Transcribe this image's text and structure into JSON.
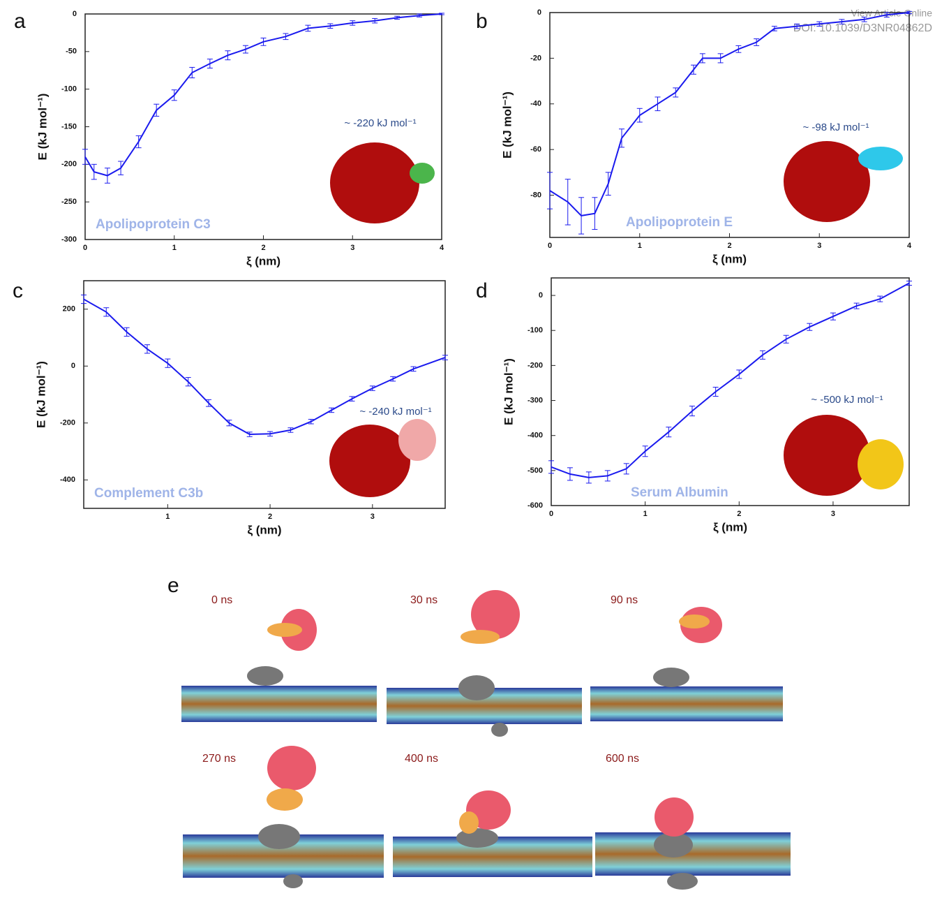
{
  "header": {
    "link": "View Article Online",
    "doi": "DOI: 10.1039/D3NR04862D"
  },
  "chart_data": [
    {
      "type": "line",
      "panel": "a",
      "annotation": "~ -220 kJ mol⁻¹",
      "protein": "Apolipoprotein C3",
      "xlabel": "ξ (nm)",
      "ylabel": "E (kJ mol⁻¹)",
      "color": "#1a1aee",
      "xlim": [
        0,
        4
      ],
      "xticks": [
        0,
        1,
        2,
        3,
        4
      ],
      "ylim": [
        -300,
        0
      ],
      "yticks": [
        -300,
        -250,
        -200,
        -150,
        -100,
        -50,
        0
      ],
      "x": [
        0,
        0.1,
        0.25,
        0.4,
        0.6,
        0.8,
        1.0,
        1.2,
        1.4,
        1.6,
        1.8,
        2.0,
        2.25,
        2.5,
        2.75,
        3.0,
        3.25,
        3.5,
        3.75,
        4.0
      ],
      "values": [
        -190,
        -210,
        -215,
        -205,
        -170,
        -128,
        -108,
        -78,
        -66,
        -55,
        -47,
        -37,
        -30,
        -19,
        -16,
        -12,
        -9,
        -5,
        -2,
        0
      ],
      "errors": [
        10,
        10,
        10,
        9,
        8,
        8,
        7,
        7,
        6,
        6,
        5,
        5,
        4,
        4,
        3,
        3,
        3,
        2,
        2,
        1
      ]
    },
    {
      "type": "line",
      "panel": "b",
      "annotation": "~ -98 kJ mol⁻¹",
      "protein": "Apolipoprotein E",
      "xlabel": "ξ (nm)",
      "ylabel": "E (kJ mol⁻¹)",
      "color": "#1a1aee",
      "xlim": [
        0,
        4
      ],
      "xticks": [
        0,
        1,
        2,
        3,
        4
      ],
      "ylim": [
        -98.5,
        0
      ],
      "yticks": [
        -80,
        -60,
        -40,
        -20,
        0
      ],
      "x": [
        0,
        0.2,
        0.35,
        0.5,
        0.65,
        0.8,
        1.0,
        1.2,
        1.4,
        1.6,
        1.7,
        1.9,
        2.1,
        2.3,
        2.5,
        2.75,
        3.0,
        3.25,
        3.5,
        3.75,
        4.0
      ],
      "values": [
        -78,
        -83,
        -89,
        -88,
        -75,
        -55,
        -45,
        -40,
        -35,
        -25,
        -20,
        -20,
        -16,
        -13,
        -7,
        -6,
        -5,
        -4,
        -3,
        -1,
        0
      ],
      "errors": [
        8,
        10,
        8,
        7,
        5,
        4,
        3,
        3,
        2,
        2,
        2,
        2,
        1.5,
        1.5,
        1,
        1,
        1,
        1,
        1,
        1,
        0.5
      ]
    },
    {
      "type": "line",
      "panel": "c",
      "annotation": "~ -240 kJ mol⁻¹",
      "protein": "Complement C3b",
      "xlabel": "ξ (nm)",
      "ylabel": "E (kJ mol⁻¹)",
      "color": "#1a1aee",
      "xlim": [
        0.18,
        3.71
      ],
      "xticks": [
        1,
        2,
        3
      ],
      "ylim": [
        -500,
        300
      ],
      "yticks": [
        -400,
        -200,
        0,
        200
      ],
      "x": [
        0.18,
        0.4,
        0.6,
        0.8,
        1.0,
        1.2,
        1.4,
        1.6,
        1.8,
        2.0,
        2.2,
        2.4,
        2.6,
        2.8,
        3.0,
        3.2,
        3.4,
        3.71
      ],
      "values": [
        235,
        190,
        120,
        60,
        10,
        -55,
        -130,
        -200,
        -240,
        -238,
        -225,
        -195,
        -155,
        -115,
        -78,
        -45,
        -10,
        30
      ],
      "errors": [
        15,
        15,
        15,
        15,
        15,
        15,
        12,
        10,
        8,
        8,
        8,
        8,
        8,
        8,
        8,
        8,
        8,
        8
      ]
    },
    {
      "type": "line",
      "panel": "d",
      "annotation": "~ -500 kJ mol⁻¹",
      "protein": "Serum Albumin",
      "xlabel": "ξ (nm)",
      "ylabel": "E (kJ mol⁻¹)",
      "color": "#1a1aee",
      "xlim": [
        0,
        3.81
      ],
      "xticks": [
        0,
        1,
        2,
        3
      ],
      "ylim": [
        -600,
        50
      ],
      "yticks": [
        -600,
        -500,
        -400,
        -300,
        -200,
        -100,
        0
      ],
      "x": [
        0,
        0.2,
        0.4,
        0.6,
        0.8,
        1.0,
        1.25,
        1.5,
        1.75,
        2.0,
        2.25,
        2.5,
        2.75,
        3.0,
        3.25,
        3.5,
        3.81
      ],
      "values": [
        -490,
        -510,
        -520,
        -515,
        -495,
        -445,
        -390,
        -330,
        -275,
        -225,
        -170,
        -125,
        -90,
        -60,
        -30,
        -10,
        35
      ],
      "errors": [
        18,
        18,
        16,
        15,
        15,
        15,
        14,
        14,
        13,
        12,
        12,
        11,
        10,
        10,
        8,
        8,
        6
      ]
    }
  ],
  "panel_e": {
    "label": "e",
    "frames": [
      "0 ns",
      "30 ns",
      "90 ns",
      "270 ns",
      "400 ns",
      "600 ns"
    ]
  }
}
